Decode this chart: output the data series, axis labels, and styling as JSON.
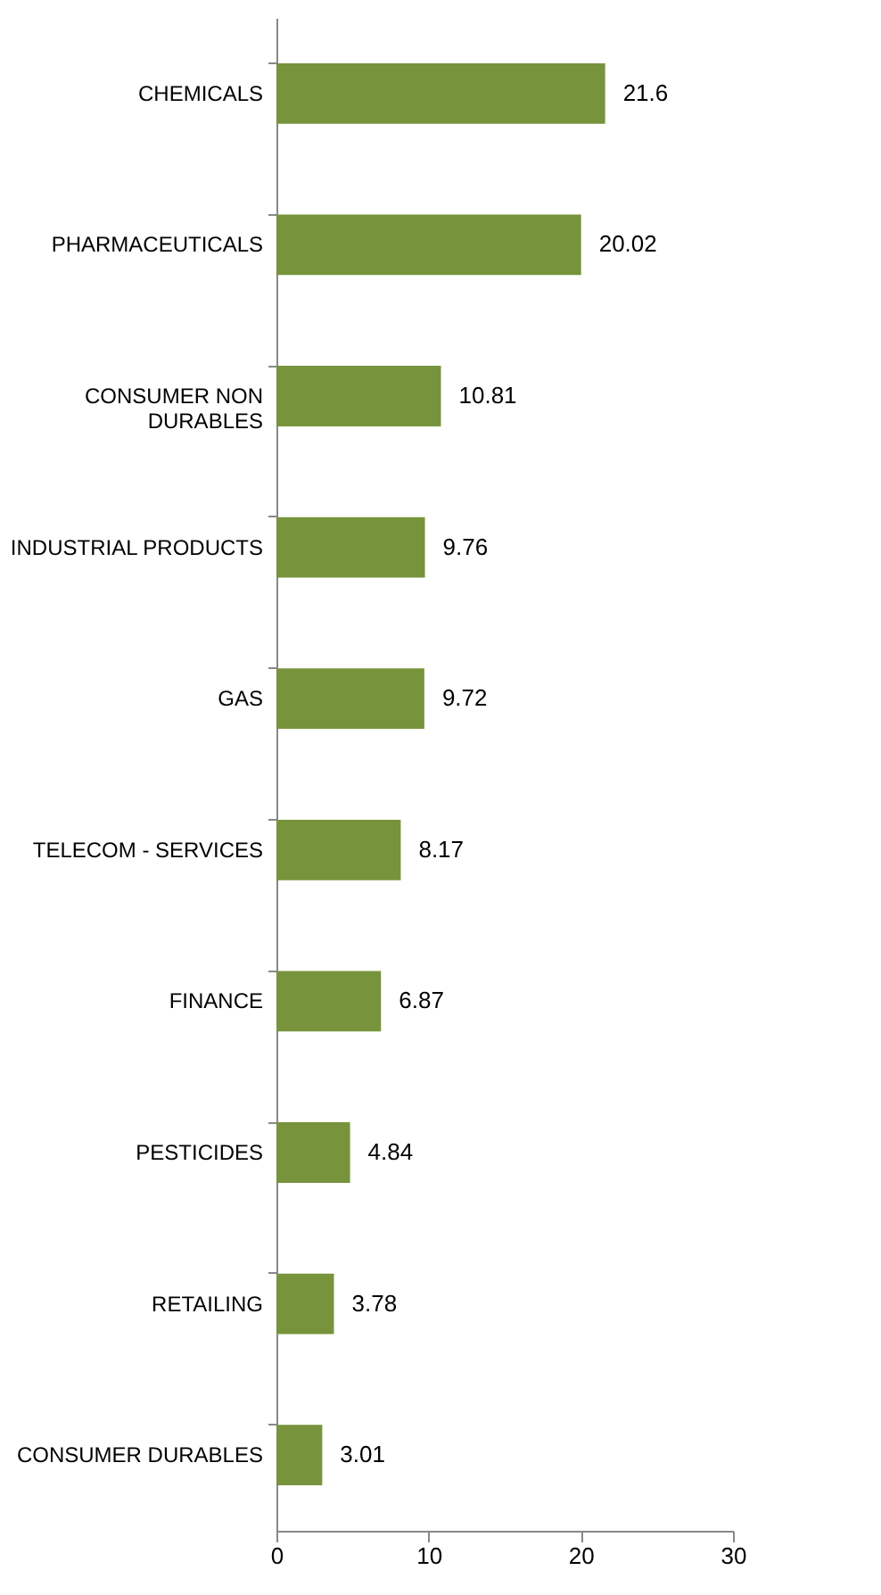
{
  "chart_data": {
    "type": "bar",
    "orientation": "horizontal",
    "categories": [
      "CHEMICALS",
      "PHARMACEUTICALS",
      "CONSUMER NON DURABLES",
      "INDUSTRIAL PRODUCTS",
      "GAS",
      "TELECOM - SERVICES",
      "FINANCE",
      "PESTICIDES",
      "RETAILING",
      "CONSUMER DURABLES"
    ],
    "values": [
      21.6,
      20.02,
      10.81,
      9.76,
      9.72,
      8.17,
      6.87,
      4.84,
      3.78,
      3.01
    ],
    "color": "#77933c",
    "xlim": [
      0,
      30
    ],
    "xticks": [
      0,
      10,
      20,
      30
    ],
    "grid": false,
    "data_labels": true
  }
}
